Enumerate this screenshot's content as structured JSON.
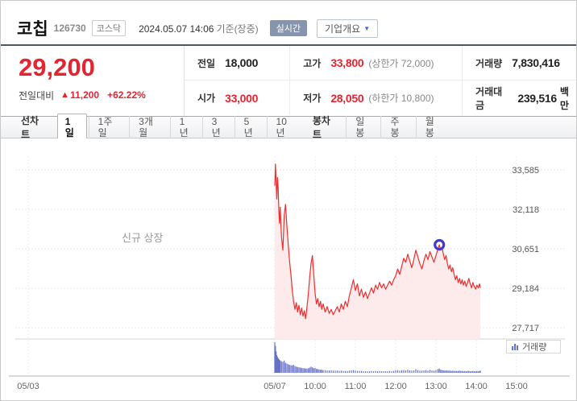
{
  "header": {
    "title": "코칩",
    "code": "126730",
    "market_badge": "코스닥",
    "datetime": "2024.05.07 14:06",
    "datetime_suffix": "기준(장중)",
    "realtime_badge": "실시간",
    "company_overview": "기업개요",
    "overview_arrow": "▼"
  },
  "price": {
    "current": "29,200",
    "change_label": "전일대비",
    "change_arrow": "▲",
    "change_value": "11,200",
    "change_percent": "+62.22%",
    "fields": {
      "prev_label": "전일",
      "prev": "18,000",
      "high_label": "고가",
      "high": "33,800",
      "high_limit": "(상한가 72,000)",
      "volume_label": "거래량",
      "volume": "7,830,416",
      "open_label": "시가",
      "open": "33,000",
      "low_label": "저가",
      "low": "28,050",
      "low_limit": "(하한가 10,800)",
      "trade_value_label": "거래대금",
      "trade_value": "239,516",
      "trade_value_unit": "백만"
    }
  },
  "tabs": {
    "line_group_label": "선차트",
    "line_tabs": [
      "1일",
      "1주일",
      "3개월",
      "1년",
      "3년",
      "5년",
      "10년"
    ],
    "selected": "1일",
    "candle_group_label": "봉차트",
    "candle_tabs": [
      "일봉",
      "주봉",
      "월봉"
    ]
  },
  "chart_data": {
    "type": "area",
    "annotation": "신규 상장",
    "volume_legend": "거래량",
    "colors": {
      "line": "#ee2e2e",
      "fill": "#fcebea",
      "volume": "#6570c8",
      "marker": "#4438cf"
    },
    "y_ticks": [
      {
        "value": 33585,
        "label": "33,585"
      },
      {
        "value": 32118,
        "label": "32,118"
      },
      {
        "value": 30651,
        "label": "30,651"
      },
      {
        "value": 29184,
        "label": "29,184"
      },
      {
        "value": 27717,
        "label": "27,717"
      }
    ],
    "x_ticks": [
      {
        "label": "05/03",
        "min": null
      },
      {
        "label": "05/07",
        "min": 540
      },
      {
        "label": "10:00",
        "min": 600
      },
      {
        "label": "11:00",
        "min": 660
      },
      {
        "label": "12:00",
        "min": 720
      },
      {
        "label": "13:00",
        "min": 780
      },
      {
        "label": "14:00",
        "min": 840
      },
      {
        "label": "15:00",
        "min": 900
      }
    ],
    "marker": {
      "min": 785,
      "price": 30800
    },
    "points": [
      [
        540,
        33000,
        100
      ],
      [
        541,
        33800,
        88
      ],
      [
        542,
        33100,
        70
      ],
      [
        543,
        32500,
        58
      ],
      [
        544,
        33300,
        52
      ],
      [
        545,
        32900,
        48
      ],
      [
        546,
        32100,
        45
      ],
      [
        547,
        31600,
        42
      ],
      [
        548,
        32200,
        40
      ],
      [
        550,
        31100,
        38
      ],
      [
        552,
        30600,
        36
      ],
      [
        554,
        31900,
        40
      ],
      [
        556,
        32300,
        33
      ],
      [
        558,
        31500,
        30
      ],
      [
        560,
        30800,
        28
      ],
      [
        562,
        30200,
        26
      ],
      [
        564,
        29700,
        25
      ],
      [
        566,
        29100,
        24
      ],
      [
        568,
        28700,
        26
      ],
      [
        570,
        28400,
        22
      ],
      [
        572,
        28650,
        20
      ],
      [
        574,
        28300,
        19
      ],
      [
        576,
        28550,
        18
      ],
      [
        578,
        28200,
        17
      ],
      [
        580,
        28450,
        16
      ],
      [
        582,
        28150,
        15
      ],
      [
        584,
        28350,
        15
      ],
      [
        586,
        28050,
        14
      ],
      [
        588,
        28500,
        14
      ],
      [
        590,
        29000,
        15
      ],
      [
        592,
        29600,
        17
      ],
      [
        594,
        30100,
        20
      ],
      [
        596,
        30400,
        18
      ],
      [
        598,
        29700,
        15
      ],
      [
        600,
        29000,
        16
      ],
      [
        602,
        28600,
        13
      ],
      [
        604,
        28800,
        12
      ],
      [
        606,
        28500,
        11
      ],
      [
        608,
        28700,
        10
      ],
      [
        610,
        28400,
        10
      ],
      [
        612,
        28600,
        9
      ],
      [
        615,
        28300,
        9
      ],
      [
        618,
        28500,
        8
      ],
      [
        621,
        28250,
        8
      ],
      [
        624,
        28400,
        8
      ],
      [
        627,
        28200,
        7
      ],
      [
        630,
        28350,
        7
      ],
      [
        633,
        28500,
        7
      ],
      [
        636,
        28300,
        6
      ],
      [
        639,
        28600,
        7
      ],
      [
        642,
        28400,
        6
      ],
      [
        645,
        28700,
        6
      ],
      [
        648,
        28500,
        6
      ],
      [
        651,
        28900,
        7
      ],
      [
        654,
        29200,
        8
      ],
      [
        657,
        29500,
        9
      ],
      [
        660,
        29100,
        7
      ],
      [
        663,
        29350,
        6
      ],
      [
        666,
        28900,
        6
      ],
      [
        669,
        29150,
        6
      ],
      [
        672,
        28850,
        5
      ],
      [
        675,
        29050,
        5
      ],
      [
        678,
        28800,
        5
      ],
      [
        681,
        29000,
        5
      ],
      [
        684,
        29200,
        6
      ],
      [
        687,
        29000,
        5
      ],
      [
        690,
        29300,
        6
      ],
      [
        693,
        29150,
        5
      ],
      [
        696,
        29400,
        6
      ],
      [
        699,
        29200,
        5
      ],
      [
        702,
        29350,
        5
      ],
      [
        705,
        29150,
        5
      ],
      [
        708,
        29300,
        5
      ],
      [
        711,
        29450,
        6
      ],
      [
        714,
        29300,
        5
      ],
      [
        717,
        29500,
        6
      ],
      [
        720,
        29650,
        8
      ],
      [
        723,
        29900,
        9
      ],
      [
        726,
        29700,
        7
      ],
      [
        729,
        30000,
        8
      ],
      [
        732,
        30300,
        9
      ],
      [
        735,
        30150,
        8
      ],
      [
        738,
        30450,
        10
      ],
      [
        741,
        30200,
        8
      ],
      [
        744,
        29950,
        7
      ],
      [
        747,
        30250,
        8
      ],
      [
        750,
        30600,
        12
      ],
      [
        753,
        30350,
        9
      ],
      [
        756,
        30100,
        7
      ],
      [
        759,
        29900,
        7
      ],
      [
        762,
        30200,
        8
      ],
      [
        765,
        30450,
        9
      ],
      [
        768,
        30250,
        7
      ],
      [
        771,
        30550,
        10
      ],
      [
        774,
        30350,
        8
      ],
      [
        777,
        30150,
        7
      ],
      [
        780,
        30400,
        9
      ],
      [
        783,
        30650,
        12
      ],
      [
        785,
        30800,
        14
      ],
      [
        787,
        30600,
        10
      ],
      [
        789,
        30700,
        9
      ],
      [
        791,
        30450,
        8
      ],
      [
        793,
        30250,
        7
      ],
      [
        795,
        30400,
        8
      ],
      [
        797,
        30100,
        7
      ],
      [
        799,
        29900,
        7
      ],
      [
        801,
        30050,
        7
      ],
      [
        803,
        29800,
        6
      ],
      [
        805,
        29950,
        7
      ],
      [
        807,
        29700,
        6
      ],
      [
        809,
        29500,
        6
      ],
      [
        811,
        29650,
        6
      ],
      [
        813,
        29400,
        6
      ],
      [
        815,
        29550,
        7
      ],
      [
        817,
        29350,
        6
      ],
      [
        819,
        29500,
        6
      ],
      [
        821,
        29300,
        5
      ],
      [
        823,
        29450,
        6
      ],
      [
        825,
        29250,
        5
      ],
      [
        827,
        29400,
        6
      ],
      [
        829,
        29550,
        6
      ],
      [
        831,
        29350,
        5
      ],
      [
        833,
        29200,
        5
      ],
      [
        835,
        29400,
        6
      ],
      [
        837,
        29250,
        5
      ],
      [
        839,
        29150,
        5
      ],
      [
        841,
        29300,
        6
      ],
      [
        843,
        29200,
        5
      ],
      [
        845,
        29350,
        6
      ],
      [
        846,
        29200,
        7
      ]
    ]
  }
}
